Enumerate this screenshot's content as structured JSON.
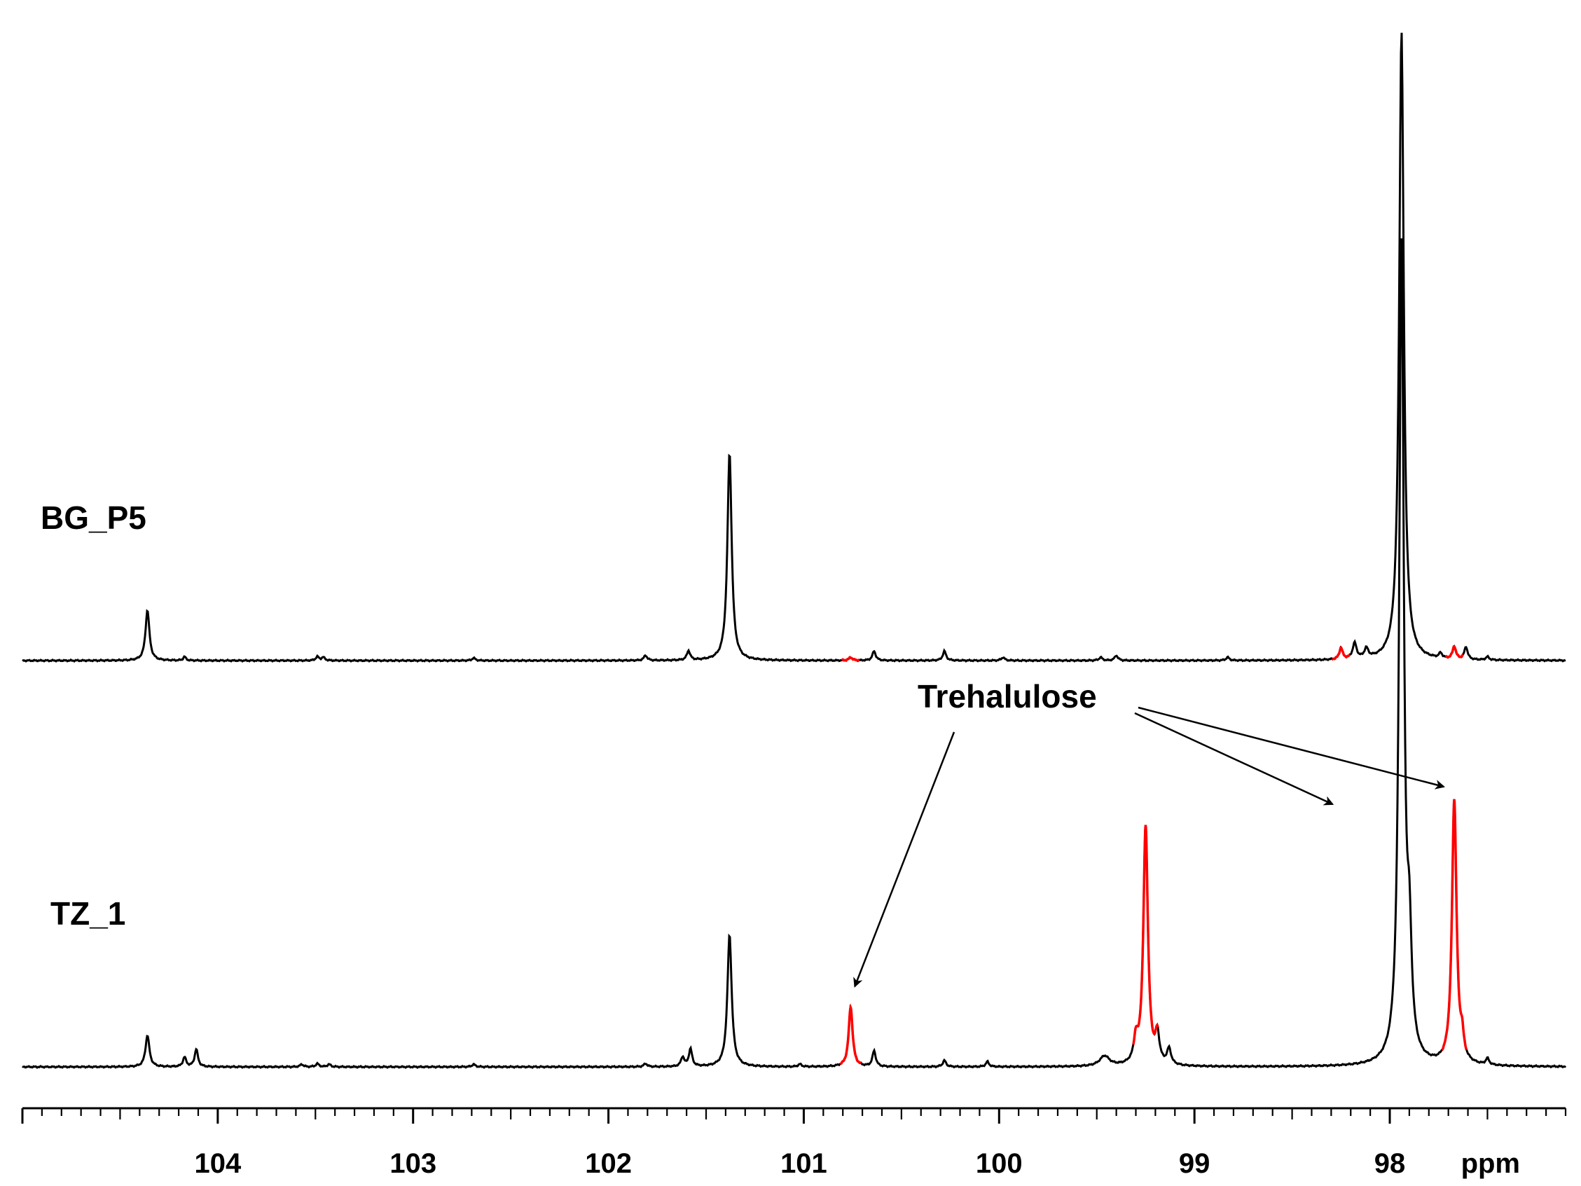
{
  "chart_data": {
    "type": "line",
    "title": "",
    "xlabel": "ppm",
    "ylabel": "",
    "x_reversed": true,
    "xlim": [
      105.0,
      97.1
    ],
    "x_ticks": [
      104,
      103,
      102,
      101,
      100,
      99,
      98
    ],
    "x_tick_labels": [
      "104",
      "103",
      "102",
      "101",
      "100",
      "99",
      "98"
    ],
    "x_unit_label": "ppm",
    "grid": false,
    "colors": {
      "spectrum": "#000000",
      "highlight": "#ff0000"
    },
    "series": [
      {
        "name": "BG_P5",
        "peaks": [
          {
            "ppm": 104.36,
            "height": 0.08,
            "width": 0.012
          },
          {
            "ppm": 104.17,
            "height": 0.006,
            "width": 0.008
          },
          {
            "ppm": 103.49,
            "height": 0.006,
            "width": 0.01
          },
          {
            "ppm": 103.46,
            "height": 0.005,
            "width": 0.01
          },
          {
            "ppm": 102.69,
            "height": 0.004,
            "width": 0.01
          },
          {
            "ppm": 101.81,
            "height": 0.008,
            "width": 0.01
          },
          {
            "ppm": 101.59,
            "height": 0.015,
            "width": 0.01
          },
          {
            "ppm": 101.38,
            "height": 0.33,
            "width": 0.013
          },
          {
            "ppm": 100.76,
            "height": 0.005,
            "width": 0.01,
            "highlight": true
          },
          {
            "ppm": 100.64,
            "height": 0.015,
            "width": 0.01
          },
          {
            "ppm": 100.28,
            "height": 0.015,
            "width": 0.01
          },
          {
            "ppm": 99.98,
            "height": 0.005,
            "width": 0.01
          },
          {
            "ppm": 99.48,
            "height": 0.005,
            "width": 0.01
          },
          {
            "ppm": 99.4,
            "height": 0.008,
            "width": 0.01
          },
          {
            "ppm": 98.83,
            "height": 0.005,
            "width": 0.01
          },
          {
            "ppm": 98.25,
            "height": 0.018,
            "width": 0.01,
            "highlight": true
          },
          {
            "ppm": 98.18,
            "height": 0.025,
            "width": 0.012
          },
          {
            "ppm": 98.12,
            "height": 0.015,
            "width": 0.012
          },
          {
            "ppm": 97.94,
            "height": 1.0,
            "width": 0.014
          },
          {
            "ppm": 97.74,
            "height": 0.008,
            "width": 0.01
          },
          {
            "ppm": 97.67,
            "height": 0.02,
            "width": 0.01,
            "highlight": true
          },
          {
            "ppm": 97.61,
            "height": 0.02,
            "width": 0.01
          },
          {
            "ppm": 97.5,
            "height": 0.005,
            "width": 0.01
          }
        ]
      },
      {
        "name": "TZ_1",
        "peaks": [
          {
            "ppm": 104.36,
            "height": 0.05,
            "width": 0.012
          },
          {
            "ppm": 104.17,
            "height": 0.015,
            "width": 0.01
          },
          {
            "ppm": 104.11,
            "height": 0.028,
            "width": 0.01
          },
          {
            "ppm": 103.57,
            "height": 0.004,
            "width": 0.01
          },
          {
            "ppm": 103.49,
            "height": 0.005,
            "width": 0.01
          },
          {
            "ppm": 103.43,
            "height": 0.004,
            "width": 0.01
          },
          {
            "ppm": 102.69,
            "height": 0.004,
            "width": 0.01
          },
          {
            "ppm": 101.81,
            "height": 0.005,
            "width": 0.01
          },
          {
            "ppm": 101.62,
            "height": 0.015,
            "width": 0.01
          },
          {
            "ppm": 101.58,
            "height": 0.028,
            "width": 0.01
          },
          {
            "ppm": 101.38,
            "height": 0.21,
            "width": 0.013
          },
          {
            "ppm": 101.02,
            "height": 0.004,
            "width": 0.01
          },
          {
            "ppm": 100.76,
            "height": 0.095,
            "width": 0.012,
            "highlight": true
          },
          {
            "ppm": 100.64,
            "height": 0.025,
            "width": 0.01
          },
          {
            "ppm": 100.28,
            "height": 0.01,
            "width": 0.01
          },
          {
            "ppm": 100.06,
            "height": 0.008,
            "width": 0.01
          },
          {
            "ppm": 99.46,
            "height": 0.016,
            "width": 0.03
          },
          {
            "ppm": 99.3,
            "height": 0.035,
            "width": 0.012
          },
          {
            "ppm": 99.25,
            "height": 0.38,
            "width": 0.014,
            "highlight": true
          },
          {
            "ppm": 99.19,
            "height": 0.045,
            "width": 0.012
          },
          {
            "ppm": 99.13,
            "height": 0.025,
            "width": 0.012
          },
          {
            "ppm": 97.94,
            "height": 1.3,
            "width": 0.014
          },
          {
            "ppm": 97.9,
            "height": 0.16,
            "width": 0.014
          },
          {
            "ppm": 97.67,
            "height": 0.42,
            "width": 0.014,
            "highlight": true
          },
          {
            "ppm": 97.63,
            "height": 0.03,
            "width": 0.01
          },
          {
            "ppm": 97.5,
            "height": 0.01,
            "width": 0.01
          }
        ]
      }
    ],
    "annotations": [
      {
        "text": "Trehalulose",
        "targets_ppm": [
          100.76,
          98.25,
          97.67
        ]
      }
    ]
  }
}
